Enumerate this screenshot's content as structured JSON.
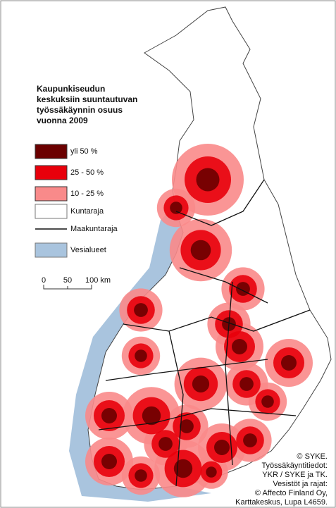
{
  "title": [
    "Kaupunkiseudun",
    "keskuksiin suuntautuvan",
    "työssäkäynnin osuus",
    "vuonna 2009"
  ],
  "legend": [
    "yli 50 %",
    "25 - 50 %",
    "10 - 25 %",
    "Kuntaraja",
    "Maakuntaraja",
    "Vesialueet"
  ],
  "scale": [
    "0",
    "50",
    "100 km"
  ],
  "credits": [
    "© SYKE.",
    "Työssäkäyntitiedot:",
    "YKR / SYKE ja TK.",
    "Vesistöt ja rajat:",
    "© Affecto Finland Oy,",
    "Karttakeskus, Lupa L4659."
  ]
}
